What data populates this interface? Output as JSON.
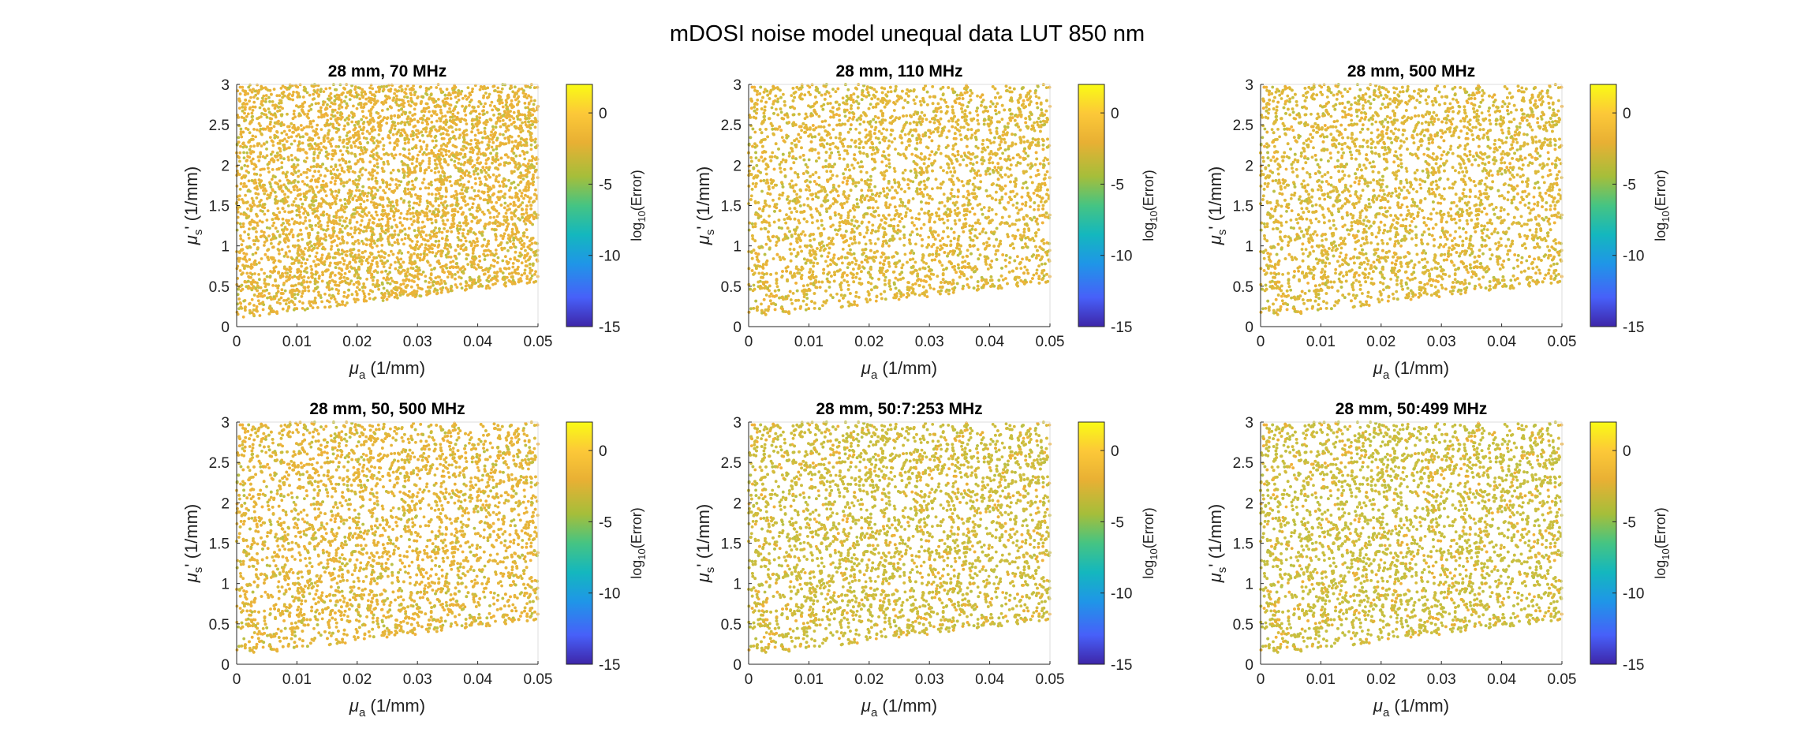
{
  "figure_title": "mDOSI noise model unequal data LUT 850 nm",
  "chart_data": [
    {
      "type": "scatter",
      "title": "28 mm, 70 MHz",
      "xlabel": "μa (1/mm)",
      "ylabel": "μs' (1/mm)",
      "colorbar_label": "log10(Error)",
      "xlim": [
        0,
        0.05
      ],
      "ylim": [
        0,
        3
      ],
      "clim": [
        -15,
        2
      ],
      "x_ticks": [
        "0",
        "0.01",
        "0.02",
        "0.03",
        "0.04",
        "0.05"
      ],
      "y_ticks": [
        "0",
        "0.5",
        "1",
        "1.5",
        "2",
        "2.5",
        "3"
      ],
      "colorbar_ticks": [
        "0",
        "-5",
        "-10",
        "-15"
      ],
      "points": {
        "x_range": [
          0,
          0.05
        ],
        "y_min_at_x0": 0.1,
        "y_min_at_x005": 0.55,
        "y_max": 3.0,
        "log10_error_typical": [
          -4,
          0
        ],
        "dominant_color": "#e9b43a"
      }
    },
    {
      "type": "scatter",
      "title": "28 mm, 110 MHz",
      "xlabel": "μa (1/mm)",
      "ylabel": "μs' (1/mm)",
      "colorbar_label": "log10(Error)",
      "xlim": [
        0,
        0.05
      ],
      "ylim": [
        0,
        3
      ],
      "clim": [
        -15,
        2
      ],
      "x_ticks": [
        "0",
        "0.01",
        "0.02",
        "0.03",
        "0.04",
        "0.05"
      ],
      "y_ticks": [
        "0",
        "0.5",
        "1",
        "1.5",
        "2",
        "2.5",
        "3"
      ],
      "colorbar_ticks": [
        "0",
        "-5",
        "-10",
        "-15"
      ],
      "points": {
        "x_range": [
          0,
          0.05
        ],
        "y_min_at_x0": 0.1,
        "y_min_at_x005": 0.55,
        "y_max": 3.0,
        "log10_error_typical": [
          -4,
          0
        ],
        "dominant_color": "#e3b83a"
      }
    },
    {
      "type": "scatter",
      "title": "28 mm, 500 MHz",
      "xlabel": "μa (1/mm)",
      "ylabel": "μs' (1/mm)",
      "colorbar_label": "log10(Error)",
      "xlim": [
        0,
        0.05
      ],
      "ylim": [
        0,
        3
      ],
      "clim": [
        -15,
        2
      ],
      "x_ticks": [
        "0",
        "0.01",
        "0.02",
        "0.03",
        "0.04",
        "0.05"
      ],
      "y_ticks": [
        "0",
        "0.5",
        "1",
        "1.5",
        "2",
        "2.5",
        "3"
      ],
      "colorbar_ticks": [
        "0",
        "-5",
        "-10",
        "-15"
      ],
      "points": {
        "x_range": [
          0,
          0.05
        ],
        "y_min_at_x0": 0.1,
        "y_min_at_x005": 0.55,
        "y_max": 3.0,
        "log10_error_typical": [
          -4,
          0
        ],
        "dominant_color": "#dfb93b"
      }
    },
    {
      "type": "scatter",
      "title": "28 mm, 50, 500 MHz",
      "xlabel": "μa (1/mm)",
      "ylabel": "μs' (1/mm)",
      "colorbar_label": "log10(Error)",
      "xlim": [
        0,
        0.05
      ],
      "ylim": [
        0,
        3
      ],
      "clim": [
        -15,
        2
      ],
      "x_ticks": [
        "0",
        "0.01",
        "0.02",
        "0.03",
        "0.04",
        "0.05"
      ],
      "y_ticks": [
        "0",
        "0.5",
        "1",
        "1.5",
        "2",
        "2.5",
        "3"
      ],
      "colorbar_ticks": [
        "0",
        "-5",
        "-10",
        "-15"
      ],
      "points": {
        "x_range": [
          0,
          0.05
        ],
        "y_min_at_x0": 0.1,
        "y_min_at_x005": 0.55,
        "y_max": 3.0,
        "log10_error_typical": [
          -4,
          0
        ],
        "dominant_color": "#e6b53a"
      }
    },
    {
      "type": "scatter",
      "title": "28 mm, 50:7:253 MHz",
      "xlabel": "μa (1/mm)",
      "ylabel": "μs' (1/mm)",
      "colorbar_label": "log10(Error)",
      "xlim": [
        0,
        0.05
      ],
      "ylim": [
        0,
        3
      ],
      "clim": [
        -15,
        2
      ],
      "x_ticks": [
        "0",
        "0.01",
        "0.02",
        "0.03",
        "0.04",
        "0.05"
      ],
      "y_ticks": [
        "0",
        "0.5",
        "1",
        "1.5",
        "2",
        "2.5",
        "3"
      ],
      "colorbar_ticks": [
        "0",
        "-5",
        "-10",
        "-15"
      ],
      "points": {
        "x_range": [
          0,
          0.05
        ],
        "y_min_at_x0": 0.1,
        "y_min_at_x005": 0.55,
        "y_max": 3.0,
        "log10_error_typical": [
          -5,
          -1
        ],
        "dominant_color": "#cdbd3e"
      }
    },
    {
      "type": "scatter",
      "title": "28 mm, 50:499 MHz",
      "xlabel": "μa (1/mm)",
      "ylabel": "μs' (1/mm)",
      "colorbar_label": "log10(Error)",
      "xlim": [
        0,
        0.05
      ],
      "ylim": [
        0,
        3
      ],
      "clim": [
        -15,
        2
      ],
      "x_ticks": [
        "0",
        "0.01",
        "0.02",
        "0.03",
        "0.04",
        "0.05"
      ],
      "y_ticks": [
        "0",
        "0.5",
        "1",
        "1.5",
        "2",
        "2.5",
        "3"
      ],
      "colorbar_ticks": [
        "0",
        "-5",
        "-10",
        "-15"
      ],
      "points": {
        "x_range": [
          0,
          0.05
        ],
        "y_min_at_x0": 0.1,
        "y_min_at_x005": 0.55,
        "y_max": 3.0,
        "log10_error_typical": [
          -5,
          -1
        ],
        "dominant_color": "#c9bf40"
      }
    }
  ],
  "colormap_stops": [
    "#3e26a8",
    "#4760f9",
    "#1f96e7",
    "#14b7be",
    "#45c483",
    "#a5be3a",
    "#e8b034",
    "#fcc838",
    "#f9fb15"
  ]
}
